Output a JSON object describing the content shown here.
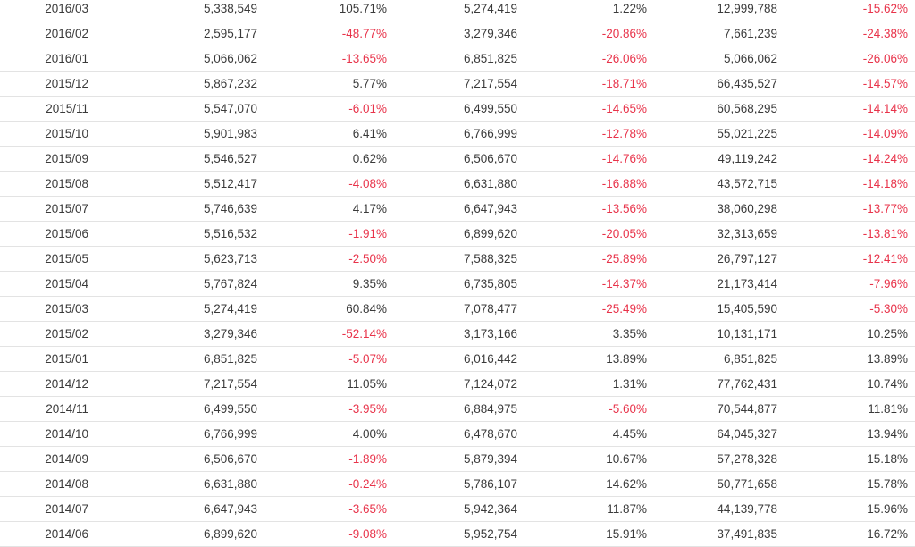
{
  "colors": {
    "text": "#3a3a3a",
    "negative": "#e8334a",
    "divider": "#e3e3e3"
  },
  "rows": [
    [
      "2016/03",
      "5,338,549",
      "105.71%",
      "5,274,419",
      "1.22%",
      "12,999,788",
      "-15.62%"
    ],
    [
      "2016/02",
      "2,595,177",
      "-48.77%",
      "3,279,346",
      "-20.86%",
      "7,661,239",
      "-24.38%"
    ],
    [
      "2016/01",
      "5,066,062",
      "-13.65%",
      "6,851,825",
      "-26.06%",
      "5,066,062",
      "-26.06%"
    ],
    [
      "2015/12",
      "5,867,232",
      "5.77%",
      "7,217,554",
      "-18.71%",
      "66,435,527",
      "-14.57%"
    ],
    [
      "2015/11",
      "5,547,070",
      "-6.01%",
      "6,499,550",
      "-14.65%",
      "60,568,295",
      "-14.14%"
    ],
    [
      "2015/10",
      "5,901,983",
      "6.41%",
      "6,766,999",
      "-12.78%",
      "55,021,225",
      "-14.09%"
    ],
    [
      "2015/09",
      "5,546,527",
      "0.62%",
      "6,506,670",
      "-14.76%",
      "49,119,242",
      "-14.24%"
    ],
    [
      "2015/08",
      "5,512,417",
      "-4.08%",
      "6,631,880",
      "-16.88%",
      "43,572,715",
      "-14.18%"
    ],
    [
      "2015/07",
      "5,746,639",
      "4.17%",
      "6,647,943",
      "-13.56%",
      "38,060,298",
      "-13.77%"
    ],
    [
      "2015/06",
      "5,516,532",
      "-1.91%",
      "6,899,620",
      "-20.05%",
      "32,313,659",
      "-13.81%"
    ],
    [
      "2015/05",
      "5,623,713",
      "-2.50%",
      "7,588,325",
      "-25.89%",
      "26,797,127",
      "-12.41%"
    ],
    [
      "2015/04",
      "5,767,824",
      "9.35%",
      "6,735,805",
      "-14.37%",
      "21,173,414",
      "-7.96%"
    ],
    [
      "2015/03",
      "5,274,419",
      "60.84%",
      "7,078,477",
      "-25.49%",
      "15,405,590",
      "-5.30%"
    ],
    [
      "2015/02",
      "3,279,346",
      "-52.14%",
      "3,173,166",
      "3.35%",
      "10,131,171",
      "10.25%"
    ],
    [
      "2015/01",
      "6,851,825",
      "-5.07%",
      "6,016,442",
      "13.89%",
      "6,851,825",
      "13.89%"
    ],
    [
      "2014/12",
      "7,217,554",
      "11.05%",
      "7,124,072",
      "1.31%",
      "77,762,431",
      "10.74%"
    ],
    [
      "2014/11",
      "6,499,550",
      "-3.95%",
      "6,884,975",
      "-5.60%",
      "70,544,877",
      "11.81%"
    ],
    [
      "2014/10",
      "6,766,999",
      "4.00%",
      "6,478,670",
      "4.45%",
      "64,045,327",
      "13.94%"
    ],
    [
      "2014/09",
      "6,506,670",
      "-1.89%",
      "5,879,394",
      "10.67%",
      "57,278,328",
      "15.18%"
    ],
    [
      "2014/08",
      "6,631,880",
      "-0.24%",
      "5,786,107",
      "14.62%",
      "50,771,658",
      "15.78%"
    ],
    [
      "2014/07",
      "6,647,943",
      "-3.65%",
      "5,942,364",
      "11.87%",
      "44,139,778",
      "15.96%"
    ],
    [
      "2014/06",
      "6,899,620",
      "-9.08%",
      "5,952,754",
      "15.91%",
      "37,491,835",
      "16.72%"
    ]
  ]
}
